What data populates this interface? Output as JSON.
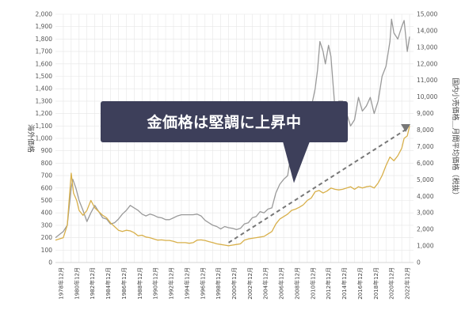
{
  "chart_data": {
    "type": "line",
    "title": "",
    "y_left": {
      "label": "海外価格",
      "ticks": [
        0,
        100,
        200,
        300,
        400,
        500,
        600,
        700,
        800,
        900,
        1000,
        1100,
        1200,
        1300,
        1400,
        1500,
        1600,
        1700,
        1800,
        1900,
        2000
      ],
      "tick_labels": [
        "0",
        "100",
        "200",
        "300",
        "400",
        "500",
        "600",
        "700",
        "800",
        "900",
        "1,000",
        "1,100",
        "1,200",
        "1,300",
        "1,400",
        "1,500",
        "1,600",
        "1,700",
        "1,800",
        "1,900",
        "2,000"
      ],
      "ylim": [
        0,
        2000
      ]
    },
    "y_right": {
      "label": "国内小売価格＿月間平均価格（税抜）",
      "ticks": [
        0,
        1000,
        2000,
        3000,
        4000,
        5000,
        6000,
        7000,
        8000,
        9000,
        10000,
        11000,
        12000,
        13000,
        14000,
        15000
      ],
      "tick_labels": [
        "0",
        "1,000",
        "2,000",
        "3,000",
        "4,000",
        "5,000",
        "6,000",
        "7,000",
        "8,000",
        "9,000",
        "10,000",
        "11,000",
        "12,000",
        "13,000",
        "14,000",
        "15,000"
      ],
      "ylim": [
        0,
        15000
      ]
    },
    "x_tick_labels": [
      "1978年12月",
      "1980年12月",
      "1982年12月",
      "1984年12月",
      "1986年12月",
      "1988年12月",
      "1990年12月",
      "1992年12月",
      "1994年12月",
      "1996年12月",
      "1998年12月",
      "2000年12月",
      "2002年12月",
      "2004年12月",
      "2006年12月",
      "2008年12月",
      "2010年12月",
      "2012年12月",
      "2014年12月",
      "2016年12月",
      "2018年12月",
      "2020年12月",
      "2022年12月"
    ],
    "xlim": [
      1978.0,
      2023.5
    ],
    "grid": true,
    "series": [
      {
        "axis": "left",
        "color": "#9a9a9a",
        "points": [
          [
            1978.0,
            200
          ],
          [
            1979.0,
            250
          ],
          [
            1979.5,
            300
          ],
          [
            1980.0,
            600
          ],
          [
            1980.2,
            670
          ],
          [
            1980.6,
            600
          ],
          [
            1981.0,
            500
          ],
          [
            1981.5,
            420
          ],
          [
            1982.0,
            330
          ],
          [
            1982.5,
            400
          ],
          [
            1983.0,
            460
          ],
          [
            1983.5,
            410
          ],
          [
            1984.0,
            360
          ],
          [
            1984.5,
            350
          ],
          [
            1985.0,
            310
          ],
          [
            1985.5,
            320
          ],
          [
            1986.0,
            350
          ],
          [
            1986.5,
            390
          ],
          [
            1987.0,
            420
          ],
          [
            1987.5,
            460
          ],
          [
            1988.0,
            440
          ],
          [
            1988.5,
            420
          ],
          [
            1989.0,
            390
          ],
          [
            1989.5,
            375
          ],
          [
            1990.0,
            390
          ],
          [
            1990.5,
            380
          ],
          [
            1991.0,
            365
          ],
          [
            1991.5,
            360
          ],
          [
            1992.0,
            345
          ],
          [
            1992.5,
            345
          ],
          [
            1993.0,
            360
          ],
          [
            1993.5,
            375
          ],
          [
            1994.0,
            385
          ],
          [
            1994.5,
            385
          ],
          [
            1995.0,
            385
          ],
          [
            1995.5,
            385
          ],
          [
            1996.0,
            390
          ],
          [
            1996.5,
            375
          ],
          [
            1997.0,
            340
          ],
          [
            1997.5,
            320
          ],
          [
            1998.0,
            300
          ],
          [
            1998.5,
            290
          ],
          [
            1999.0,
            270
          ],
          [
            1999.5,
            290
          ],
          [
            2000.0,
            280
          ],
          [
            2000.5,
            275
          ],
          [
            2001.0,
            265
          ],
          [
            2001.5,
            275
          ],
          [
            2002.0,
            310
          ],
          [
            2002.5,
            320
          ],
          [
            2003.0,
            360
          ],
          [
            2003.5,
            370
          ],
          [
            2004.0,
            410
          ],
          [
            2004.5,
            400
          ],
          [
            2005.0,
            430
          ],
          [
            2005.5,
            440
          ],
          [
            2006.0,
            560
          ],
          [
            2006.5,
            630
          ],
          [
            2007.0,
            670
          ],
          [
            2007.5,
            700
          ],
          [
            2008.0,
            900
          ],
          [
            2008.5,
            920
          ],
          [
            2009.0,
            880
          ],
          [
            2009.5,
            960
          ],
          [
            2010.0,
            1100
          ],
          [
            2010.5,
            1250
          ],
          [
            2011.0,
            1400
          ],
          [
            2011.3,
            1550
          ],
          [
            2011.6,
            1780
          ],
          [
            2012.0,
            1700
          ],
          [
            2012.3,
            1600
          ],
          [
            2012.7,
            1750
          ],
          [
            2013.0,
            1660
          ],
          [
            2013.5,
            1250
          ],
          [
            2014.0,
            1300
          ],
          [
            2014.5,
            1300
          ],
          [
            2015.0,
            1200
          ],
          [
            2015.5,
            1100
          ],
          [
            2016.0,
            1150
          ],
          [
            2016.5,
            1330
          ],
          [
            2017.0,
            1220
          ],
          [
            2017.5,
            1260
          ],
          [
            2018.0,
            1330
          ],
          [
            2018.5,
            1200
          ],
          [
            2019.0,
            1300
          ],
          [
            2019.5,
            1500
          ],
          [
            2020.0,
            1580
          ],
          [
            2020.5,
            1780
          ],
          [
            2020.7,
            1960
          ],
          [
            2021.0,
            1850
          ],
          [
            2021.5,
            1800
          ],
          [
            2022.0,
            1900
          ],
          [
            2022.3,
            1950
          ],
          [
            2022.7,
            1700
          ],
          [
            2023.0,
            1820
          ]
        ]
      },
      {
        "axis": "left",
        "color": "#d8b04b",
        "points": [
          [
            1978.0,
            180
          ],
          [
            1979.0,
            200
          ],
          [
            1979.5,
            300
          ],
          [
            1980.0,
            720
          ],
          [
            1980.3,
            560
          ],
          [
            1980.7,
            500
          ],
          [
            1981.0,
            420
          ],
          [
            1981.5,
            380
          ],
          [
            1982.0,
            420
          ],
          [
            1982.5,
            500
          ],
          [
            1983.0,
            440
          ],
          [
            1983.5,
            410
          ],
          [
            1984.0,
            380
          ],
          [
            1984.5,
            360
          ],
          [
            1985.0,
            320
          ],
          [
            1985.5,
            290
          ],
          [
            1986.0,
            260
          ],
          [
            1986.5,
            250
          ],
          [
            1987.0,
            260
          ],
          [
            1987.5,
            255
          ],
          [
            1988.0,
            240
          ],
          [
            1988.5,
            215
          ],
          [
            1989.0,
            220
          ],
          [
            1989.5,
            205
          ],
          [
            1990.0,
            200
          ],
          [
            1990.5,
            190
          ],
          [
            1991.0,
            180
          ],
          [
            1991.5,
            182
          ],
          [
            1992.0,
            178
          ],
          [
            1992.5,
            178
          ],
          [
            1993.0,
            170
          ],
          [
            1993.5,
            160
          ],
          [
            1994.0,
            160
          ],
          [
            1994.5,
            160
          ],
          [
            1995.0,
            155
          ],
          [
            1995.5,
            160
          ],
          [
            1996.0,
            180
          ],
          [
            1996.5,
            182
          ],
          [
            1997.0,
            178
          ],
          [
            1997.5,
            168
          ],
          [
            1998.0,
            160
          ],
          [
            1998.5,
            150
          ],
          [
            1999.0,
            145
          ],
          [
            1999.5,
            140
          ],
          [
            2000.0,
            135
          ],
          [
            2000.5,
            140
          ],
          [
            2001.0,
            145
          ],
          [
            2001.5,
            150
          ],
          [
            2002.0,
            180
          ],
          [
            2002.5,
            190
          ],
          [
            2003.0,
            195
          ],
          [
            2003.5,
            200
          ],
          [
            2004.0,
            205
          ],
          [
            2004.5,
            210
          ],
          [
            2005.0,
            230
          ],
          [
            2005.5,
            250
          ],
          [
            2006.0,
            310
          ],
          [
            2006.5,
            350
          ],
          [
            2007.0,
            370
          ],
          [
            2007.5,
            390
          ],
          [
            2008.0,
            420
          ],
          [
            2008.5,
            430
          ],
          [
            2009.0,
            445
          ],
          [
            2009.5,
            465
          ],
          [
            2010.0,
            500
          ],
          [
            2010.5,
            520
          ],
          [
            2011.0,
            570
          ],
          [
            2011.5,
            580
          ],
          [
            2012.0,
            560
          ],
          [
            2012.5,
            575
          ],
          [
            2013.0,
            600
          ],
          [
            2013.5,
            590
          ],
          [
            2014.0,
            585
          ],
          [
            2014.5,
            590
          ],
          [
            2015.0,
            600
          ],
          [
            2015.5,
            610
          ],
          [
            2016.0,
            590
          ],
          [
            2016.5,
            610
          ],
          [
            2017.0,
            600
          ],
          [
            2017.5,
            610
          ],
          [
            2018.0,
            615
          ],
          [
            2018.5,
            600
          ],
          [
            2019.0,
            640
          ],
          [
            2019.5,
            700
          ],
          [
            2020.0,
            780
          ],
          [
            2020.5,
            850
          ],
          [
            2021.0,
            820
          ],
          [
            2021.5,
            860
          ],
          [
            2022.0,
            920
          ],
          [
            2022.3,
            1000
          ],
          [
            2022.7,
            1020
          ],
          [
            2023.0,
            1100
          ]
        ]
      }
    ],
    "trend_line": {
      "color": "#777777",
      "from": [
        2000.0,
        160
      ],
      "to": [
        2022.5,
        1070
      ]
    },
    "annotation": {
      "text": "金価格は堅調に上昇中",
      "bg": "#3d3f5a",
      "pointer_to": [
        2008.3,
        640
      ]
    }
  }
}
